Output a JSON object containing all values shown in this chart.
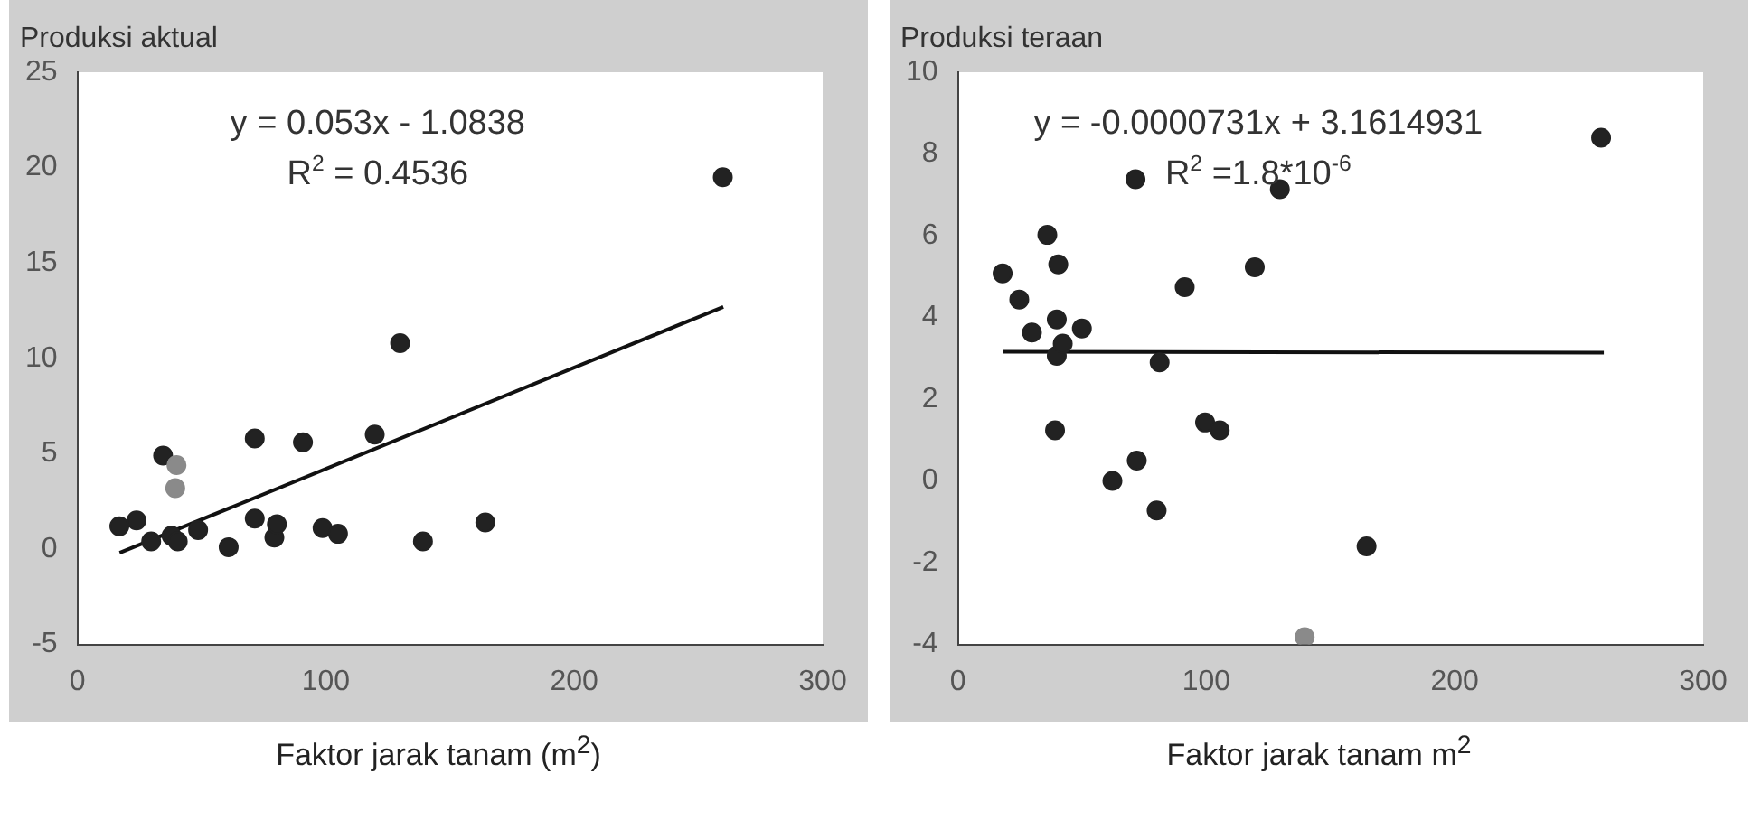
{
  "chart_data": [
    {
      "type": "scatter",
      "ylabel": "Produksi aktual",
      "xlabel": "Faktor jarak tanam (m$^{2}$)",
      "annotations": [
        "y = 0.053x - 1.0838",
        "R$^{2}$ = 0.4536"
      ],
      "xlim": [
        0,
        300
      ],
      "xticks": [
        0,
        100,
        200,
        300
      ],
      "ylim": [
        -5,
        25
      ],
      "yticks": [
        -5,
        0,
        5,
        10,
        15,
        20,
        25
      ],
      "grid": false,
      "legend": false,
      "series": [
        {
          "type": "scatter",
          "marker": "circle",
          "x": [
            16.9,
            23.8,
            29.7,
            34.5,
            39.9,
            39.4,
            37.9,
            40.4,
            48.6,
            60.9,
            71.4,
            71.4,
            79.3,
            80.3,
            90.8,
            98.7,
            104.9,
            119.7,
            129.9,
            139.1,
            164.2,
            259.8
          ],
          "values": [
            1.2,
            1.5,
            0.4,
            4.9,
            4.4,
            3.2,
            0.7,
            0.4,
            1.0,
            0.1,
            5.8,
            1.6,
            0.6,
            1.3,
            5.6,
            1.1,
            0.8,
            6.0,
            10.8,
            0.4,
            1.4,
            19.5
          ],
          "colors": [
            "#222222",
            "#222222",
            "#222222",
            "#222222",
            "#8a8a8a",
            "#8a8a8a",
            "#222222",
            "#222222",
            "#222222",
            "#222222",
            "#222222",
            "#222222",
            "#222222",
            "#222222",
            "#222222",
            "#222222",
            "#222222",
            "#222222",
            "#222222",
            "#222222",
            "#222222",
            "#222222"
          ]
        },
        {
          "type": "line",
          "x": [
            17,
            260
          ],
          "values": [
            -0.2,
            12.7
          ],
          "color": "#111111",
          "line_style": "solid",
          "marker": "none"
        }
      ]
    },
    {
      "type": "scatter",
      "ylabel": "Produksi teraan",
      "xlabel": "Faktor jarak tanam m$^{2}$",
      "annotations": [
        "y = -0.0000731x + 3.1614931",
        "R$^{2}$ =1.8*10$^{-6}$"
      ],
      "xlim": [
        0,
        300
      ],
      "xticks": [
        0,
        100,
        200,
        300
      ],
      "ylim": [
        -4,
        10
      ],
      "yticks": [
        -4,
        -2,
        0,
        2,
        4,
        6,
        8,
        10
      ],
      "grid": false,
      "legend": false,
      "series": [
        {
          "type": "scatter",
          "marker": "circle",
          "x": [
            18,
            24.7,
            29.8,
            36,
            39.8,
            40.4,
            39.8,
            42.2,
            49.9,
            39.1,
            62.2,
            71.5,
            72,
            81.2,
            80,
            91.3,
            99.5,
            105.4,
            119.5,
            129.6,
            139.6,
            164.5,
            258.9
          ],
          "values": [
            5.08,
            4.44,
            3.63,
            6.02,
            3.95,
            5.3,
            3.06,
            3.36,
            3.73,
            1.24,
            0.0,
            7.38,
            0.5,
            2.9,
            -0.72,
            4.74,
            1.43,
            1.24,
            5.23,
            7.14,
            -3.82,
            -1.6,
            8.4
          ],
          "colors": [
            "#222222",
            "#222222",
            "#222222",
            "#222222",
            "#222222",
            "#222222",
            "#222222",
            "#222222",
            "#222222",
            "#222222",
            "#222222",
            "#222222",
            "#222222",
            "#222222",
            "#222222",
            "#222222",
            "#222222",
            "#222222",
            "#222222",
            "#222222",
            "#8a8a8a",
            "#222222",
            "#222222"
          ]
        },
        {
          "type": "line",
          "x": [
            18,
            260
          ],
          "values": [
            3.16,
            3.14
          ],
          "color": "#111111",
          "line_style": "solid",
          "marker": "none"
        }
      ]
    }
  ]
}
